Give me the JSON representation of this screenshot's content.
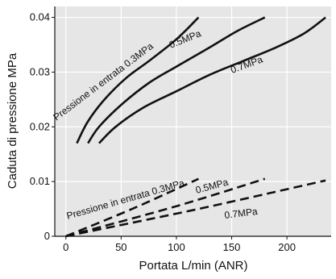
{
  "chart_data": {
    "type": "line",
    "title": "",
    "xlabel": "Portata L/min (ANR)",
    "ylabel": "Caduta di pressione MPa",
    "xlim": [
      -10,
      240
    ],
    "ylim": [
      0,
      0.042
    ],
    "x_ticks": [
      0,
      50,
      100,
      150,
      200
    ],
    "x_tick_labels": [
      "0",
      "50",
      "100",
      "150",
      "200"
    ],
    "y_ticks": [
      0,
      0.01,
      0.02,
      0.03,
      0.04
    ],
    "y_tick_labels": [
      "0",
      "0.01",
      "0.02",
      "0.03",
      "0.04"
    ],
    "grid": true,
    "background_color": "#e6e6e6",
    "series": [
      {
        "style": "solid",
        "label": "Pressione in entrata 0.3MPa",
        "points": [
          [
            10,
            0.017
          ],
          [
            20,
            0.021
          ],
          [
            35,
            0.025
          ],
          [
            55,
            0.029
          ],
          [
            75,
            0.032
          ],
          [
            100,
            0.036
          ],
          [
            120,
            0.04
          ]
        ]
      },
      {
        "style": "solid",
        "label": "0.5MPa",
        "points": [
          [
            20,
            0.017
          ],
          [
            30,
            0.02
          ],
          [
            50,
            0.024
          ],
          [
            75,
            0.028
          ],
          [
            100,
            0.031
          ],
          [
            130,
            0.0345
          ],
          [
            155,
            0.0375
          ],
          [
            180,
            0.04
          ]
        ]
      },
      {
        "style": "solid",
        "label": "0.7MPa",
        "points": [
          [
            30,
            0.017
          ],
          [
            45,
            0.02
          ],
          [
            70,
            0.0235
          ],
          [
            100,
            0.0265
          ],
          [
            130,
            0.0295
          ],
          [
            160,
            0.032
          ],
          [
            190,
            0.0345
          ],
          [
            215,
            0.037
          ],
          [
            235,
            0.04
          ]
        ]
      },
      {
        "style": "dashed",
        "label": "Pressione in entrata 0.3MPa",
        "points": [
          [
            0,
            0
          ],
          [
            60,
            0.005
          ],
          [
            120,
            0.0105
          ]
        ]
      },
      {
        "style": "dashed",
        "label": "0.5MPa",
        "points": [
          [
            0,
            0
          ],
          [
            100,
            0.0055
          ],
          [
            180,
            0.0105
          ]
        ]
      },
      {
        "style": "dashed",
        "label": "0.7MPa",
        "points": [
          [
            0,
            0
          ],
          [
            120,
            0.005
          ],
          [
            235,
            0.0102
          ]
        ]
      }
    ]
  }
}
